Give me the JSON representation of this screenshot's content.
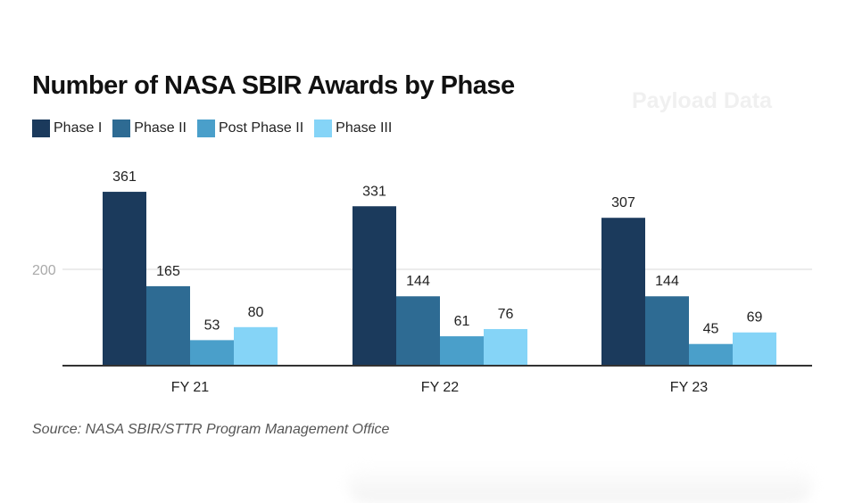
{
  "chart_data": {
    "type": "bar",
    "title": "Number of NASA SBIR Awards by Phase",
    "categories": [
      "FY 21",
      "FY 22",
      "FY 23"
    ],
    "series": [
      {
        "name": "Phase I",
        "color": "#1b3a5c",
        "values": [
          361,
          331,
          307
        ]
      },
      {
        "name": "Phase II",
        "color": "#2e6b93",
        "values": [
          165,
          144,
          144
        ]
      },
      {
        "name": "Post Phase II",
        "color": "#4a9fca",
        "values": [
          53,
          61,
          45
        ]
      },
      {
        "name": "Phase III",
        "color": "#85d4f7",
        "values": [
          80,
          76,
          69
        ]
      }
    ],
    "yticks": [
      200
    ],
    "ylim": [
      0,
      400
    ],
    "grid": true,
    "legend": "top-left",
    "source": "Source: NASA SBIR/STTR Program Management Office"
  },
  "watermark": "Payload Data"
}
